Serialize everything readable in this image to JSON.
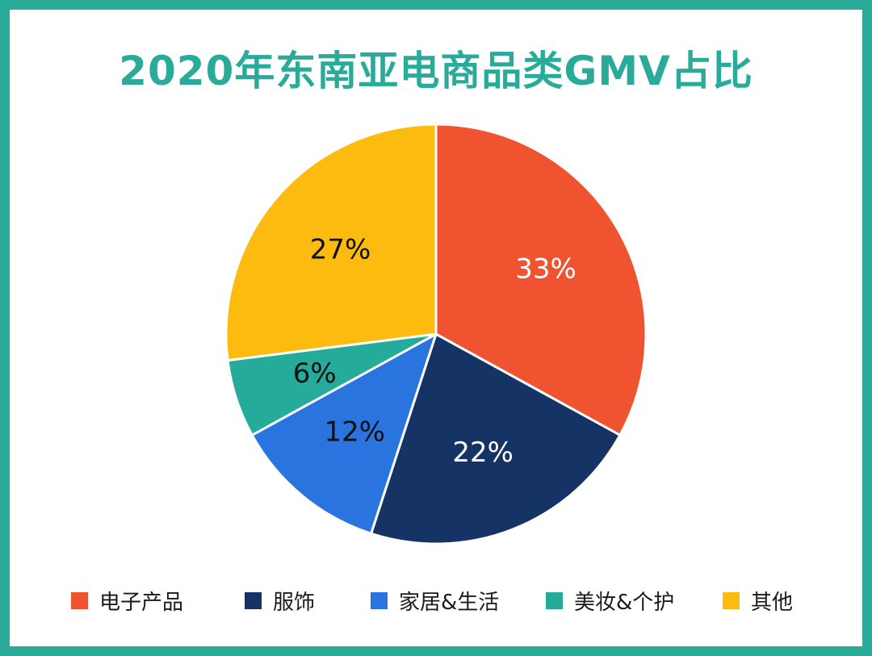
{
  "title": "2020年东南亚电商品类GMV占比",
  "colors": {
    "frame": "#2aab9a",
    "title": "#2aab9a"
  },
  "chart_data": {
    "type": "pie",
    "title": "2020年东南亚电商品类GMV占比",
    "unit": "%",
    "legend_position": "bottom",
    "slices": [
      {
        "label": "电子产品",
        "value": 33,
        "value_label": "33%",
        "color": "#ef5330",
        "label_color": "#ffffff"
      },
      {
        "label": "服饰",
        "value": 22,
        "value_label": "22%",
        "color": "#163365",
        "label_color": "#ffffff"
      },
      {
        "label": "家居&生活",
        "value": 12,
        "value_label": "12%",
        "color": "#2a74e0",
        "label_color": "#111111"
      },
      {
        "label": "美妆&个护",
        "value": 6,
        "value_label": "6%",
        "color": "#25ab9a",
        "label_color": "#111111"
      },
      {
        "label": "其他",
        "value": 27,
        "value_label": "27%",
        "color": "#fdba0f",
        "label_color": "#111111"
      }
    ]
  }
}
